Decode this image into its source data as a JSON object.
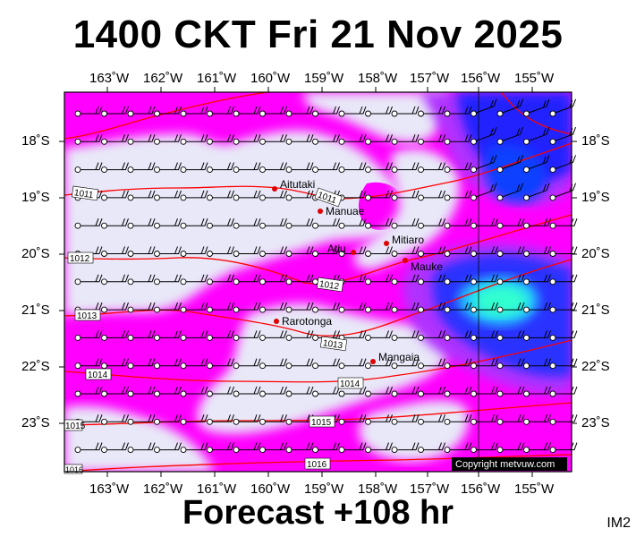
{
  "header": {
    "title": "1400 CKT Fri 21 Nov 2025"
  },
  "footer": {
    "forecast": "Forecast +108 hr",
    "product_code": "IM2"
  },
  "copyright": "Copyright metvuw.com",
  "map": {
    "lon_labels": [
      "163˚W",
      "162˚W",
      "161˚W",
      "160˚W",
      "159˚W",
      "158˚W",
      "157˚W",
      "156˚W",
      "155˚W"
    ],
    "lat_labels": [
      "18˚S",
      "19˚S",
      "20˚S",
      "21˚S",
      "22˚S",
      "23˚S"
    ],
    "islands": [
      {
        "name": "Aitutaki"
      },
      {
        "name": "Manuae"
      },
      {
        "name": "Mitiaro"
      },
      {
        "name": "Atiu"
      },
      {
        "name": "Mauke"
      },
      {
        "name": "Rarotonga"
      },
      {
        "name": "Mangaia"
      }
    ],
    "isobar_labels": [
      "1011",
      "1011",
      "1012",
      "1012",
      "1013",
      "1013",
      "1014",
      "1014",
      "1015",
      "1015",
      "1016",
      "1016"
    ],
    "colors": {
      "background_low": "#e8e8f8",
      "magenta": "#ff00ff",
      "violet": "#b030ff",
      "blue": "#2020ff",
      "cyan": "#00ffd0",
      "isobar": "#ff0000",
      "town": "#e00000"
    }
  }
}
